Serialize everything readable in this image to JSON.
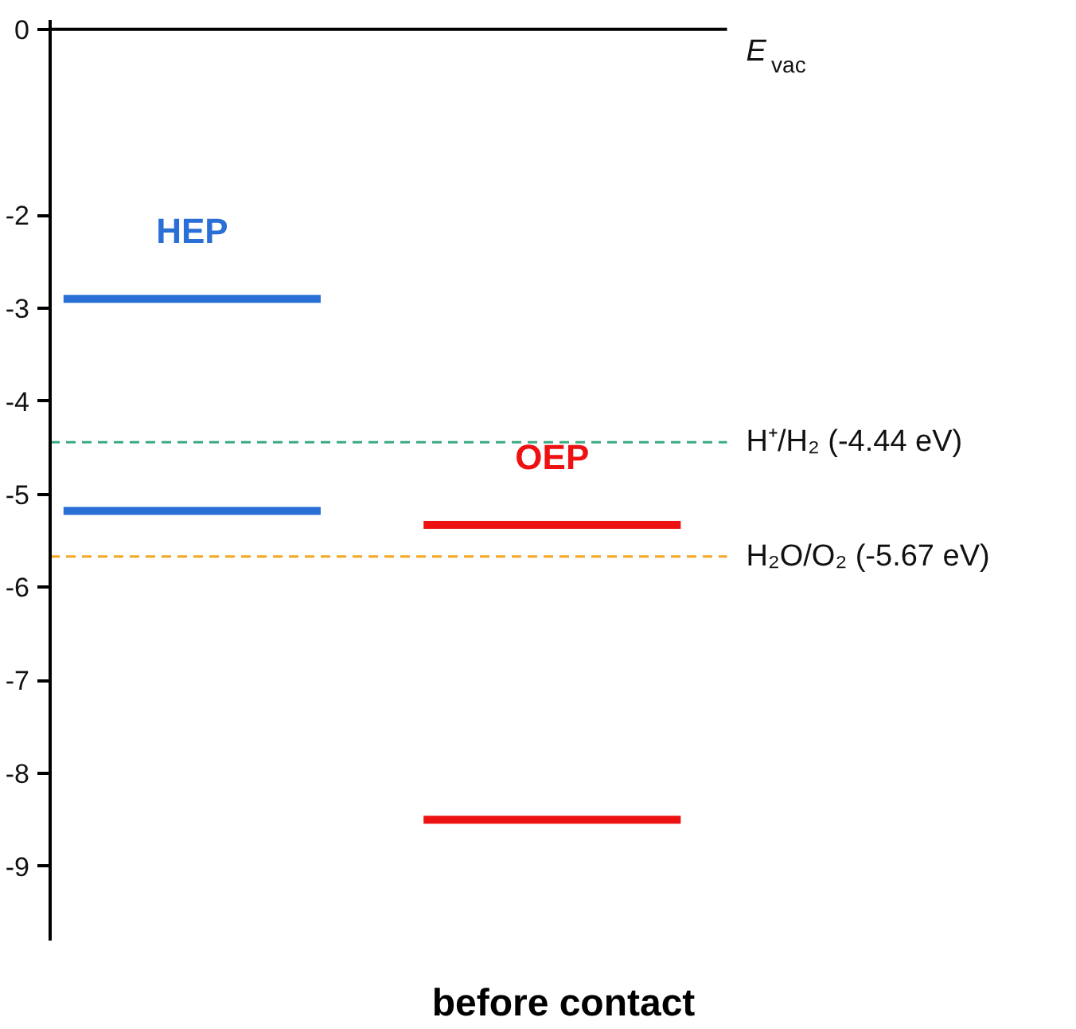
{
  "chart_data": {
    "type": "line",
    "xlabel": "before contact",
    "categories": [
      null,
      null,
      null,
      null,
      null,
      null,
      null,
      null,
      null,
      null,
      null,
      null,
      null
    ],
    "ylim": [
      -9.8,
      0.1
    ],
    "yticks": [
      0,
      -2,
      -3,
      -4,
      -5,
      -6,
      -7,
      -8,
      -9
    ],
    "tick_labels": "y",
    "grid": false,
    "marker": "none",
    "line_style": "solid",
    "series": [
      {
        "name": "HEP",
        "color": "#2a6fd6",
        "values": [
          -2.9,
          -2.9,
          -2.9,
          -2.9,
          -2.9,
          -2.9,
          null,
          null,
          null,
          null,
          null,
          null,
          null
        ]
      },
      {
        "color": "#2a6fd6",
        "values": [
          -5.18,
          -5.18,
          -5.18,
          -5.18,
          -5.18,
          -5.18,
          null,
          null,
          null,
          null,
          null,
          null,
          null
        ]
      },
      {
        "name": "OEP",
        "color": "#ee1111",
        "values": [
          null,
          null,
          null,
          null,
          null,
          null,
          null,
          -5.33,
          -5.33,
          -5.33,
          -5.33,
          -5.33,
          -5.33
        ]
      },
      {
        "color": "#ee1111",
        "values": [
          null,
          null,
          null,
          null,
          null,
          null,
          null,
          -8.5,
          -8.5,
          -8.5,
          -8.5,
          -8.5,
          -8.5
        ]
      }
    ],
    "ref_lines": [
      {
        "axis": "y",
        "value": 0,
        "label": "E$_{vac}$",
        "color": "#000000",
        "line_style": "solid"
      },
      {
        "axis": "y",
        "value": -4.44,
        "label": "H⁺/H₂ (-4.44 eV)",
        "color": "#3aaa80",
        "line_style": "dashed"
      },
      {
        "axis": "y",
        "value": -5.67,
        "label": "H₂O/O₂ (-5.67 eV)",
        "color": "#f5a623",
        "line_style": "dashed"
      }
    ]
  }
}
